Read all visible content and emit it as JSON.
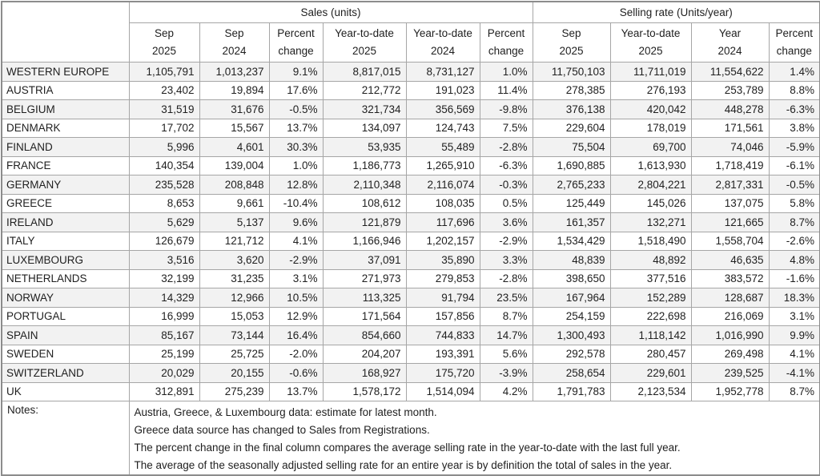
{
  "colors": {
    "outer_border": "#8c8c8c",
    "inner_border": "#a6a6a6",
    "row_stripe": "#f2f2f2",
    "text": "#1f1f1f",
    "background": "#ffffff"
  },
  "chart_data": {
    "type": "table",
    "title": "",
    "group_headers": [
      {
        "label": "Sales (units)",
        "colspan": 6
      },
      {
        "label": "Selling rate (Units/year)",
        "colspan": 4
      }
    ],
    "columns": [
      [
        "Sep",
        "2025"
      ],
      [
        "Sep",
        "2024"
      ],
      [
        "Percent",
        "change"
      ],
      [
        "Year-to-date",
        "2025"
      ],
      [
        "Year-to-date",
        "2024"
      ],
      [
        "Percent",
        "change"
      ],
      [
        "Sep",
        "2025"
      ],
      [
        "Year-to-date",
        "2025"
      ],
      [
        "Year",
        "2024"
      ],
      [
        "Percent",
        "change"
      ]
    ],
    "rows": [
      {
        "country": "WESTERN EUROPE",
        "values": [
          "1,105,791",
          "1,013,237",
          "9.1%",
          "8,817,015",
          "8,731,127",
          "1.0%",
          "11,750,103",
          "11,711,019",
          "11,554,622",
          "1.4%"
        ]
      },
      {
        "country": "AUSTRIA",
        "values": [
          "23,402",
          "19,894",
          "17.6%",
          "212,772",
          "191,023",
          "11.4%",
          "278,385",
          "276,193",
          "253,789",
          "8.8%"
        ]
      },
      {
        "country": "BELGIUM",
        "values": [
          "31,519",
          "31,676",
          "-0.5%",
          "321,734",
          "356,569",
          "-9.8%",
          "376,138",
          "420,042",
          "448,278",
          "-6.3%"
        ]
      },
      {
        "country": "DENMARK",
        "values": [
          "17,702",
          "15,567",
          "13.7%",
          "134,097",
          "124,743",
          "7.5%",
          "229,604",
          "178,019",
          "171,561",
          "3.8%"
        ]
      },
      {
        "country": "FINLAND",
        "values": [
          "5,996",
          "4,601",
          "30.3%",
          "53,935",
          "55,489",
          "-2.8%",
          "75,504",
          "69,700",
          "74,046",
          "-5.9%"
        ]
      },
      {
        "country": "FRANCE",
        "values": [
          "140,354",
          "139,004",
          "1.0%",
          "1,186,773",
          "1,265,910",
          "-6.3%",
          "1,690,885",
          "1,613,930",
          "1,718,419",
          "-6.1%"
        ]
      },
      {
        "country": "GERMANY",
        "values": [
          "235,528",
          "208,848",
          "12.8%",
          "2,110,348",
          "2,116,074",
          "-0.3%",
          "2,765,233",
          "2,804,221",
          "2,817,331",
          "-0.5%"
        ]
      },
      {
        "country": "GREECE",
        "values": [
          "8,653",
          "9,661",
          "-10.4%",
          "108,612",
          "108,035",
          "0.5%",
          "125,449",
          "145,026",
          "137,075",
          "5.8%"
        ]
      },
      {
        "country": "IRELAND",
        "values": [
          "5,629",
          "5,137",
          "9.6%",
          "121,879",
          "117,696",
          "3.6%",
          "161,357",
          "132,271",
          "121,665",
          "8.7%"
        ]
      },
      {
        "country": "ITALY",
        "values": [
          "126,679",
          "121,712",
          "4.1%",
          "1,166,946",
          "1,202,157",
          "-2.9%",
          "1,534,429",
          "1,518,490",
          "1,558,704",
          "-2.6%"
        ]
      },
      {
        "country": "LUXEMBOURG",
        "values": [
          "3,516",
          "3,620",
          "-2.9%",
          "37,091",
          "35,890",
          "3.3%",
          "48,839",
          "48,892",
          "46,635",
          "4.8%"
        ]
      },
      {
        "country": "NETHERLANDS",
        "values": [
          "32,199",
          "31,235",
          "3.1%",
          "271,973",
          "279,853",
          "-2.8%",
          "398,650",
          "377,516",
          "383,572",
          "-1.6%"
        ]
      },
      {
        "country": "NORWAY",
        "values": [
          "14,329",
          "12,966",
          "10.5%",
          "113,325",
          "91,794",
          "23.5%",
          "167,964",
          "152,289",
          "128,687",
          "18.3%"
        ]
      },
      {
        "country": "PORTUGAL",
        "values": [
          "16,999",
          "15,053",
          "12.9%",
          "171,564",
          "157,856",
          "8.7%",
          "254,159",
          "222,698",
          "216,069",
          "3.1%"
        ]
      },
      {
        "country": "SPAIN",
        "values": [
          "85,167",
          "73,144",
          "16.4%",
          "854,660",
          "744,833",
          "14.7%",
          "1,300,493",
          "1,118,142",
          "1,016,990",
          "9.9%"
        ]
      },
      {
        "country": "SWEDEN",
        "values": [
          "25,199",
          "25,725",
          "-2.0%",
          "204,207",
          "193,391",
          "5.6%",
          "292,578",
          "280,457",
          "269,498",
          "4.1%"
        ]
      },
      {
        "country": "SWITZERLAND",
        "values": [
          "20,029",
          "20,155",
          "-0.6%",
          "168,927",
          "175,720",
          "-3.9%",
          "258,654",
          "229,601",
          "239,525",
          "-4.1%"
        ]
      },
      {
        "country": "UK",
        "values": [
          "312,891",
          "275,239",
          "13.7%",
          "1,578,172",
          "1,514,094",
          "4.2%",
          "1,791,783",
          "2,123,534",
          "1,952,778",
          "8.7%"
        ]
      }
    ],
    "notes_label": "Notes:",
    "notes": [
      "Austria, Greece, & Luxembourg data: estimate for latest month.",
      "Greece data source has changed to Sales from Registrations.",
      "The percent change in the final column compares the average selling rate in the year-to-date with the last full year.",
      "The average of the seasonally adjusted selling rate for an entire year is by definition the total of sales in the year."
    ]
  }
}
